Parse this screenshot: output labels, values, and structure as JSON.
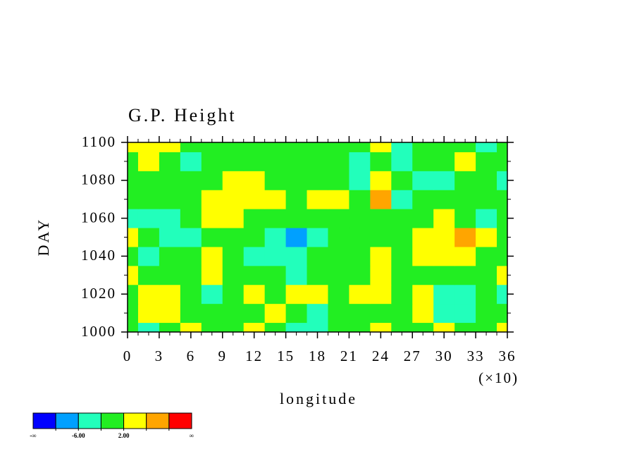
{
  "chart_data": {
    "type": "contour",
    "title": "G.P. Height",
    "xlabel": "longitude",
    "ylabel": "DAY",
    "x_multiplier_label": "(×10)",
    "x": [
      0,
      20,
      40,
      60,
      80,
      100,
      120,
      140,
      160,
      180,
      200,
      220,
      240,
      260,
      280,
      300,
      320,
      340,
      360
    ],
    "y": [
      1000,
      1010,
      1020,
      1030,
      1040,
      1050,
      1060,
      1070,
      1080,
      1090,
      1100
    ],
    "z": [
      [
        0,
        -3,
        1,
        3,
        0,
        -1,
        2,
        0,
        -4,
        -3,
        1,
        0,
        3,
        -1,
        0,
        2,
        0,
        1,
        3
      ],
      [
        1,
        3,
        4,
        1,
        -1,
        0,
        1,
        2,
        -1,
        -3,
        0,
        1,
        -1,
        0,
        2,
        -3,
        -4,
        -1,
        0
      ],
      [
        -1,
        3,
        4,
        -1,
        -3,
        1,
        3,
        -2,
        2,
        3,
        0,
        3,
        2,
        -2,
        3,
        -3,
        -4,
        -2,
        -3
      ],
      [
        2,
        -1,
        0,
        1,
        2,
        0,
        -1,
        1,
        -3,
        0,
        -1,
        1,
        3,
        -2,
        1,
        0,
        1,
        -1,
        2
      ],
      [
        -1,
        -3,
        -2,
        0,
        3,
        -2,
        -4,
        -3,
        -3,
        1,
        -1,
        -2,
        3,
        0,
        4,
        4,
        3,
        -1,
        1
      ],
      [
        2,
        -1,
        -3,
        -4,
        1,
        -2,
        -1,
        -3,
        -7,
        -4,
        0,
        1,
        -1,
        -2,
        3,
        5,
        7,
        3,
        0
      ],
      [
        -3,
        -4,
        -3,
        -1,
        2,
        3,
        0,
        -1,
        -2,
        -1,
        1,
        0,
        -2,
        0,
        -1,
        2,
        -1,
        -3,
        -2
      ],
      [
        1,
        0,
        -1,
        -2,
        3,
        5,
        4,
        3,
        1,
        2,
        3,
        0,
        7,
        -3,
        -2,
        -1,
        0,
        1,
        -2
      ],
      [
        -2,
        1,
        0,
        1,
        -1,
        4,
        3,
        -1,
        -2,
        -1,
        0,
        -3,
        2,
        -2,
        -4,
        -3,
        -1,
        0,
        -3
      ],
      [
        1,
        2,
        -1,
        -3,
        0,
        -1,
        1,
        0,
        -2,
        0,
        -1,
        -3,
        1,
        -4,
        -1,
        0,
        2,
        -2,
        -1
      ],
      [
        3,
        4,
        2,
        1,
        -1,
        0,
        1,
        -2,
        1,
        0,
        -1,
        1,
        2,
        -3,
        0,
        -2,
        -1,
        -3,
        0
      ]
    ],
    "xlim": [
      0,
      360
    ],
    "ylim": [
      1000,
      1100
    ],
    "xticks": [
      {
        "value": 0,
        "label": "0"
      },
      {
        "value": 30,
        "label": "3"
      },
      {
        "value": 60,
        "label": "6"
      },
      {
        "value": 90,
        "label": "9"
      },
      {
        "value": 120,
        "label": "12"
      },
      {
        "value": 150,
        "label": "15"
      },
      {
        "value": 180,
        "label": "18"
      },
      {
        "value": 210,
        "label": "21"
      },
      {
        "value": 240,
        "label": "24"
      },
      {
        "value": 270,
        "label": "27"
      },
      {
        "value": 300,
        "label": "30"
      },
      {
        "value": 330,
        "label": "33"
      },
      {
        "value": 360,
        "label": "36"
      }
    ],
    "yticks": [
      1000,
      1020,
      1040,
      1060,
      1080,
      1100
    ],
    "colorbar": {
      "colors": [
        "#0000ff",
        "#00a0ff",
        "#22ffbb",
        "#22ee22",
        "#ffff00",
        "#ffa500",
        "#ff0000"
      ],
      "levels": [
        -10,
        -6,
        -2,
        2,
        6,
        10
      ],
      "low_label": "-∞",
      "high_label": "∞",
      "ticks": [
        {
          "value": -6,
          "label": "-6.00"
        },
        {
          "value": 2,
          "label": "2.00"
        }
      ]
    }
  }
}
